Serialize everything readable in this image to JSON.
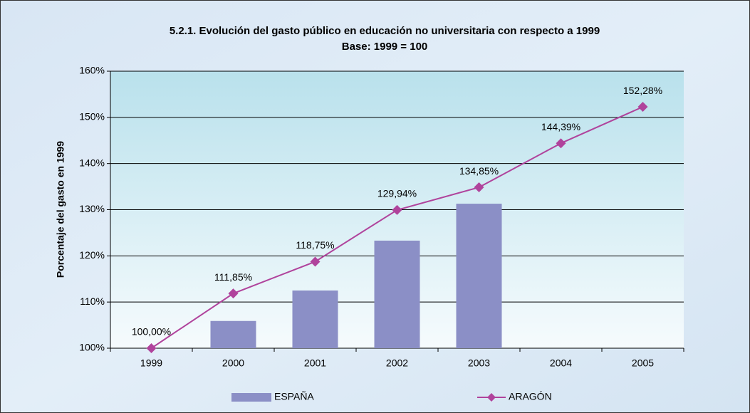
{
  "chart_data": {
    "type": "bar",
    "title": "5.2.1. Evolución del gasto público en educación no universitaria con respecto a 1999",
    "subtitle": "Base: 1999 = 100",
    "y_label": "Porcentaje del gasto en 1999",
    "categories": [
      "1999",
      "2000",
      "2001",
      "2002",
      "2003",
      "2004",
      "2005"
    ],
    "series": [
      {
        "name": "ESPAÑA",
        "type": "bar",
        "color": "#8b8fc6",
        "values": [
          100,
          105.9,
          112.5,
          123.3,
          131.3,
          null,
          null
        ]
      },
      {
        "name": "ARAGÓN",
        "type": "line",
        "color": "#b0439c",
        "values": [
          100,
          111.85,
          118.75,
          129.94,
          134.85,
          144.39,
          152.28
        ],
        "value_labels": [
          "100,00%",
          "111,85%",
          "118,75%",
          "129,94%",
          "134,85%",
          "144,39%",
          "152,28%"
        ]
      }
    ],
    "ylim": [
      100,
      160
    ],
    "yticks": [
      {
        "value": 100,
        "label": "100%"
      },
      {
        "value": 110,
        "label": "110%"
      },
      {
        "value": 120,
        "label": "120%"
      },
      {
        "value": 130,
        "label": "130%"
      },
      {
        "value": 140,
        "label": "140%"
      },
      {
        "value": 150,
        "label": "150%"
      },
      {
        "value": 160,
        "label": "160%"
      }
    ],
    "grid": true,
    "legend": "bottom"
  }
}
